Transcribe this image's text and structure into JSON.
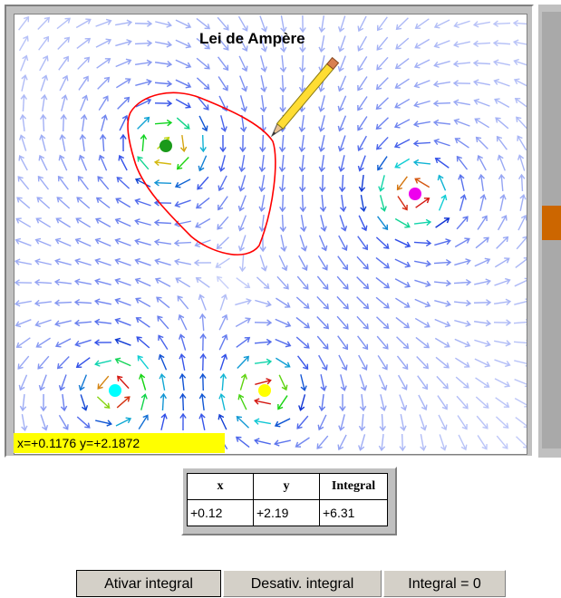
{
  "title": "Lei de Ampère",
  "status": {
    "coords": "x=+0.1176  y=+2.1872"
  },
  "table": {
    "headers": [
      "x",
      "y",
      "Integral"
    ],
    "row": [
      "+0.12",
      "+2.19",
      "+6.31"
    ]
  },
  "buttons": {
    "enable": "Ativar integral",
    "disable": "Desativ. integral",
    "zero": "Integral = 0"
  },
  "charges": [
    {
      "name": "green",
      "color": "#1a9a1a"
    },
    {
      "name": "magenta",
      "color": "#ee00ee"
    },
    {
      "name": "cyan",
      "color": "#00ffff"
    },
    {
      "name": "yellow",
      "color": "#ffff00"
    }
  ],
  "colors": {
    "loop": "#ff0000",
    "status_bg": "#ffff00",
    "slider_thumb": "#cc6600",
    "pencil": "#ffdd33"
  }
}
